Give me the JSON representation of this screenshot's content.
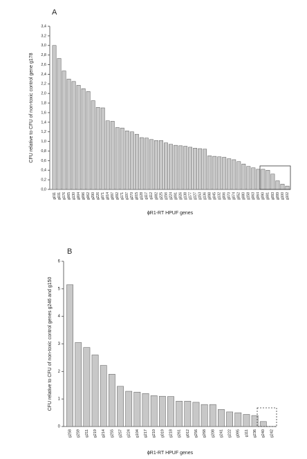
{
  "chart_data": [
    {
      "type": "bar",
      "annotations": [
        "A"
      ],
      "y_label": "CFU relative to CFU of non-toxic control gene g178",
      "x_label": "ϕR1-RT HPUF genes",
      "categories": [
        "g011",
        "g031",
        "g176",
        "g065",
        "g130",
        "g004",
        "g096",
        "g062",
        "g290",
        "g226",
        "g071",
        "g014",
        "g097",
        "g092",
        "g171",
        "g197",
        "g270",
        "g015",
        "g128",
        "g117",
        "g112",
        "g082",
        "g225",
        "g156",
        "g224",
        "g091",
        "g026",
        "g138",
        "g177",
        "g127",
        "g153",
        "g136",
        "g098",
        "g045",
        "g132",
        "g006",
        "g070",
        "g074",
        "g052",
        "g080",
        "g158",
        "g063",
        "g064",
        "g090",
        "g081",
        "g093",
        "g099",
        "g100",
        "g102"
      ],
      "values": [
        3.0,
        2.73,
        2.47,
        2.3,
        2.25,
        2.17,
        2.1,
        2.04,
        1.85,
        1.71,
        1.7,
        1.43,
        1.42,
        1.29,
        1.28,
        1.22,
        1.2,
        1.15,
        1.08,
        1.07,
        1.04,
        1.02,
        1.02,
        0.97,
        0.94,
        0.92,
        0.91,
        0.9,
        0.88,
        0.86,
        0.85,
        0.84,
        0.7,
        0.69,
        0.68,
        0.67,
        0.64,
        0.62,
        0.58,
        0.53,
        0.48,
        0.45,
        0.42,
        0.42,
        0.4,
        0.32,
        0.18,
        0.11,
        0.07
      ],
      "color": "#c8c8c8",
      "ylim": [
        0,
        3.4
      ],
      "yticks": [
        {
          "value": 0,
          "label": "0,0"
        },
        {
          "value": 0.2,
          "label": "0,2"
        },
        {
          "value": 0.4,
          "label": "0,4"
        },
        {
          "value": 0.6,
          "label": "0,6"
        },
        {
          "value": 0.8,
          "label": "0,8"
        },
        {
          "value": 1.0,
          "label": "1,0"
        },
        {
          "value": 1.2,
          "label": "1,2"
        },
        {
          "value": 1.4,
          "label": "1,4"
        },
        {
          "value": 1.6,
          "label": "1,6"
        },
        {
          "value": 1.8,
          "label": "1,8"
        },
        {
          "value": 2.0,
          "label": "2,0"
        },
        {
          "value": 2.2,
          "label": "2,2"
        },
        {
          "value": 2.4,
          "label": "2,4"
        },
        {
          "value": 2.6,
          "label": "2,6"
        },
        {
          "value": 2.8,
          "label": "2,8"
        },
        {
          "value": 3.0,
          "label": "3,0"
        },
        {
          "value": 3.2,
          "label": "3,2"
        },
        {
          "value": 3.4,
          "label": "3,4"
        }
      ]
    },
    {
      "type": "bar",
      "annotations": [
        "B"
      ],
      "y_label": "CFU relative to CFU of non-toxic control genes g246 and g150",
      "x_label": "ϕR1-RT HPUF genes",
      "categories": [
        "g258",
        "g259",
        "g211",
        "g219",
        "g214",
        "g255",
        "g257",
        "g224",
        "g104",
        "g217",
        "g210",
        "g019",
        "g218",
        "g261",
        "g012",
        "g256",
        "g268",
        "g208",
        "g241",
        "g222",
        "g095",
        "g111",
        "g236",
        "g240",
        "g242"
      ],
      "values": [
        5.15,
        3.05,
        2.87,
        2.6,
        2.22,
        1.9,
        1.46,
        1.28,
        1.25,
        1.2,
        1.12,
        1.1,
        1.09,
        0.92,
        0.92,
        0.88,
        0.8,
        0.8,
        0.62,
        0.53,
        0.5,
        0.44,
        0.4,
        0.18,
        0
      ],
      "color": "#c8c8c8",
      "ylim": [
        0,
        6
      ],
      "yticks": [
        0,
        1,
        2,
        3,
        4,
        5,
        6
      ]
    }
  ]
}
